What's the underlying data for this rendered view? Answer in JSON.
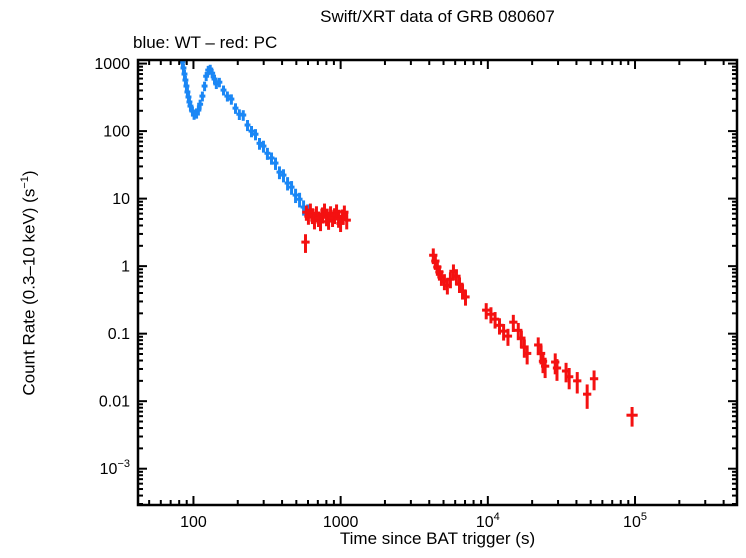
{
  "title": "Swift/XRT data of GRB 080607",
  "subtitle": "blue: WT – red: PC",
  "colors": {
    "wt_blue": "#1b87f5",
    "pc_red": "#f41111",
    "frame": "#000000",
    "background": "#ffffff"
  },
  "axes": {
    "xlabel": "Time since BAT trigger (s)",
    "ylabel": {
      "pre": "Count Rate (0.3–10 keV) (s",
      "sup": "−1",
      "post": ")"
    },
    "x_ticks": [
      {
        "v": 100,
        "label": "100"
      },
      {
        "v": 1000,
        "label": "1000"
      },
      {
        "v": 10000,
        "base": "10",
        "exp": "4"
      },
      {
        "v": 100000,
        "base": "10",
        "exp": "5"
      }
    ],
    "y_ticks": [
      {
        "v": 1000,
        "label": "1000"
      },
      {
        "v": 100,
        "label": "100"
      },
      {
        "v": 10,
        "label": "10"
      },
      {
        "v": 1,
        "label": "1"
      },
      {
        "v": 0.1,
        "label": "0.1"
      },
      {
        "v": 0.01,
        "label": "0.01"
      },
      {
        "v": 0.001,
        "base": "10",
        "exp": "−3"
      }
    ]
  },
  "chart_data": {
    "type": "scatter",
    "xscale": "log",
    "yscale": "log",
    "xlim": [
      42,
      493000
    ],
    "ylim": [
      0.00029,
      1130
    ],
    "grid": false,
    "legend": "subtitle text only",
    "series": [
      {
        "name": "WT",
        "color": "#1b87f5",
        "hw_dec": 0.012,
        "points": [
          [
            84.2,
            1050,
            160
          ],
          [
            85.5,
            860,
            130
          ],
          [
            86.9,
            700,
            110
          ],
          [
            88.2,
            570,
            90
          ],
          [
            89.6,
            465,
            75
          ],
          [
            91,
            380,
            62
          ],
          [
            92.5,
            320,
            52
          ],
          [
            93.9,
            270,
            45
          ],
          [
            95.4,
            235,
            40
          ],
          [
            98.4,
            198,
            34
          ],
          [
            101,
            178,
            31
          ],
          [
            105,
            185,
            32
          ],
          [
            108,
            205,
            35
          ],
          [
            111,
            250,
            42
          ],
          [
            115,
            330,
            55
          ],
          [
            119,
            465,
            75
          ],
          [
            122,
            650,
            100
          ],
          [
            126,
            800,
            125
          ],
          [
            130,
            830,
            130
          ],
          [
            134,
            720,
            115
          ],
          [
            139,
            590,
            95
          ],
          [
            143,
            500,
            80
          ],
          [
            150,
            530,
            85
          ],
          [
            160,
            405,
            68
          ],
          [
            170,
            330,
            56
          ],
          [
            181,
            298,
            52
          ],
          [
            193,
            219,
            39
          ],
          [
            205,
            178,
            32
          ],
          [
            218,
            173,
            31
          ],
          [
            233,
            123,
            23
          ],
          [
            248,
            100,
            19
          ],
          [
            264,
            90,
            17
          ],
          [
            281,
            66,
            13
          ],
          [
            299,
            60,
            12
          ],
          [
            318,
            47,
            9.5
          ],
          [
            339,
            40,
            8.2
          ],
          [
            361,
            33.6,
            7
          ],
          [
            384,
            24.7,
            5.3
          ],
          [
            409,
            22.3,
            4.9
          ],
          [
            436,
            17,
            3.8
          ],
          [
            464,
            14.8,
            3.4
          ],
          [
            494,
            11.3,
            2.7
          ],
          [
            526,
            9.8,
            2.4
          ],
          [
            560,
            7.5,
            1.9
          ],
          [
            597,
            6.5,
            1.7
          ]
        ]
      },
      {
        "name": "PC",
        "color": "#f41111",
        "hw_dec": 0.02,
        "points": [
          [
            577,
            2.27,
            0.7
          ],
          [
            585,
            6.3,
            1.6
          ],
          [
            604,
            5.5,
            1.4
          ],
          [
            623,
            6.75,
            1.7
          ],
          [
            643,
            5.7,
            1.5
          ],
          [
            664,
            4.8,
            1.3
          ],
          [
            685,
            6.1,
            1.6
          ],
          [
            707,
            5.1,
            1.3
          ],
          [
            730,
            4.5,
            1.2
          ],
          [
            753,
            5.9,
            1.5
          ],
          [
            777,
            6.75,
            1.7
          ],
          [
            802,
            5.3,
            1.4
          ],
          [
            828,
            4.65,
            1.2
          ],
          [
            854,
            6.1,
            1.6
          ],
          [
            881,
            5.1,
            1.3
          ],
          [
            909,
            5.7,
            1.5
          ],
          [
            938,
            6.5,
            1.7
          ],
          [
            968,
            5,
            1.3
          ],
          [
            999,
            4.3,
            1.1
          ],
          [
            1030,
            5.5,
            1.4
          ],
          [
            1060,
            6.3,
            1.6
          ],
          [
            1100,
            4.8,
            1.3
          ],
          [
            4260,
            1.45,
            0.38
          ],
          [
            4400,
            1.19,
            0.31
          ],
          [
            4540,
            0.97,
            0.25
          ],
          [
            4690,
            0.82,
            0.21
          ],
          [
            4840,
            0.69,
            0.18
          ],
          [
            5070,
            0.6,
            0.16
          ],
          [
            5310,
            0.52,
            0.14
          ],
          [
            5570,
            0.64,
            0.17
          ],
          [
            5840,
            0.84,
            0.22
          ],
          [
            6120,
            0.71,
            0.19
          ],
          [
            6420,
            0.54,
            0.14
          ],
          [
            6730,
            0.43,
            0.11
          ],
          [
            7050,
            0.35,
            0.09
          ],
          [
            9750,
            0.223,
            0.06
          ],
          [
            10500,
            0.194,
            0.052
          ],
          [
            11200,
            0.164,
            0.045
          ],
          [
            12000,
            0.133,
            0.036
          ],
          [
            12800,
            0.109,
            0.03
          ],
          [
            13700,
            0.092,
            0.026
          ],
          [
            14900,
            0.148,
            0.042
          ],
          [
            16100,
            0.112,
            0.032
          ],
          [
            16900,
            0.086,
            0.025
          ],
          [
            17700,
            0.063,
            0.019
          ],
          [
            18500,
            0.051,
            0.016
          ],
          [
            22000,
            0.068,
            0.02
          ],
          [
            23000,
            0.051,
            0.016
          ],
          [
            23700,
            0.039,
            0.013
          ],
          [
            24500,
            0.033,
            0.011
          ],
          [
            28700,
            0.038,
            0.013
          ],
          [
            29500,
            0.031,
            0.011
          ],
          [
            34000,
            0.028,
            0.009
          ],
          [
            35700,
            0.023,
            0.008
          ],
          [
            40500,
            0.02,
            0.007
          ],
          [
            47300,
            0.0127,
            0.005
          ],
          [
            52700,
            0.0215,
            0.007
          ],
          [
            95500,
            0.0062,
            0.002,
            0.03
          ]
        ]
      }
    ]
  }
}
